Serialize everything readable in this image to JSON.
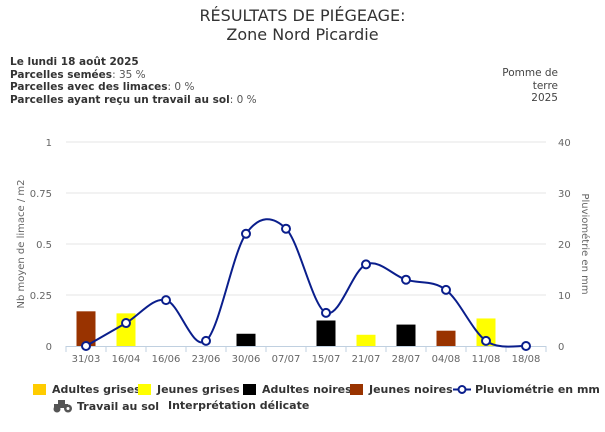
{
  "title": "RÉSULTATS DE PIÉGEAGE:",
  "subtitle": "Zone Nord Picardie",
  "info": {
    "date": "Le lundi 18 août 2025",
    "sown_label": "Parcelles semées",
    "sown_value": ": 35 %",
    "slugs_label": "Parcelles avec des limaces",
    "slugs_value": ": 0 %",
    "tillage_label": "Parcelles ayant reçu un travail au sol",
    "tillage_value": ": 0 %"
  },
  "crop": {
    "line1": "Pomme de",
    "line2": "terre",
    "line3": "2025"
  },
  "chart_data": {
    "type": "bar",
    "categories": [
      "31/03",
      "16/04",
      "16/06",
      "23/06",
      "30/06",
      "07/07",
      "15/07",
      "21/07",
      "28/07",
      "04/08",
      "11/08",
      "18/08"
    ],
    "ylabel": "Nb moyen de limace / m2",
    "y2label": "Pluviométrie en mm",
    "ylim": [
      0,
      1
    ],
    "yticks": [
      "0",
      "0.25",
      "0.5",
      "0.75",
      "1"
    ],
    "y2lim": [
      0,
      40
    ],
    "y2ticks": [
      "0",
      "10",
      "20",
      "30",
      "40"
    ],
    "series": [
      {
        "name": "Adultes grises",
        "color": "#ffcc00",
        "values": [
          0,
          0,
          0,
          0,
          0,
          0,
          0,
          0,
          0,
          0,
          0,
          0
        ]
      },
      {
        "name": "Jeunes grises",
        "color": "#ffff00",
        "values": [
          0,
          0.16,
          0,
          0,
          0,
          0,
          0,
          0.055,
          0,
          0,
          0.135,
          0
        ]
      },
      {
        "name": "Adultes noires",
        "color": "#000000",
        "values": [
          0,
          0,
          0,
          0,
          0.06,
          0,
          0.125,
          0,
          0.105,
          0,
          0,
          0
        ]
      },
      {
        "name": "Jeunes noires",
        "color": "#993300",
        "values": [
          0.17,
          0,
          0,
          0,
          0,
          0,
          0,
          0,
          0,
          0.075,
          0,
          0
        ]
      },
      {
        "name": "Pluviométrie en mm",
        "type": "line",
        "axis": "right",
        "color": "#0a1e8c",
        "values": [
          0,
          4.5,
          9,
          1,
          22,
          23,
          6.5,
          16,
          13,
          11,
          1,
          0
        ]
      }
    ],
    "legend_extra": [
      "Travail au sol",
      "Interprétation délicate"
    ],
    "grid": true,
    "legend": "bottom"
  }
}
